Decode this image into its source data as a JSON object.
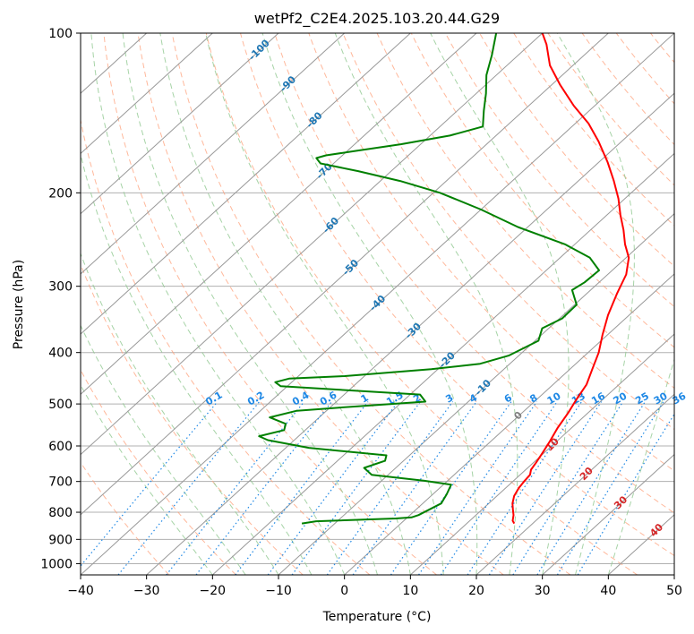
{
  "chart_data": {
    "type": "skew-t",
    "title": "wetPf2_C2E4.2025.103.20.44.G29",
    "xlabel": "Temperature (°C)",
    "ylabel": "Pressure (hPa)",
    "xlim": [
      -40,
      50
    ],
    "ylim": [
      1050,
      100
    ],
    "y_scale": "log",
    "x_ticks": [
      -40,
      -30,
      -20,
      -10,
      0,
      10,
      20,
      30,
      40,
      50
    ],
    "x_tick_labels": [
      "−40",
      "−30",
      "−20",
      "−10",
      "0",
      "10",
      "20",
      "30",
      "40",
      "50"
    ],
    "y_ticks": [
      100,
      200,
      300,
      400,
      500,
      600,
      700,
      800,
      900,
      1000
    ],
    "y_tick_labels": [
      "100",
      "200",
      "300",
      "400",
      "500",
      "600",
      "700",
      "800",
      "900",
      "1000"
    ],
    "grid": true,
    "colors": {
      "temperature": "#ff0000",
      "dewpoint": "#008000",
      "isotherm": "#999999",
      "dry_adiabat": "#ffa07a",
      "moist_adiabat": "#90c890",
      "mixing_ratio": "#1e88e5",
      "isotherm_label": "#1f77b4",
      "warm_label": "#d62728",
      "zero_label": "#808080"
    },
    "series": [
      {
        "kind": "temperature",
        "points": [
          [
            17.2,
            840
          ],
          [
            16.5,
            830
          ],
          [
            15.7,
            810
          ],
          [
            14.9,
            795
          ],
          [
            13.6,
            770
          ],
          [
            12.6,
            745
          ],
          [
            12.0,
            720
          ],
          [
            11.7,
            700
          ],
          [
            11.5,
            680
          ],
          [
            10.8,
            665
          ],
          [
            10.4,
            645
          ],
          [
            9.8,
            620
          ],
          [
            9.0,
            590
          ],
          [
            7.9,
            555
          ],
          [
            7.0,
            520
          ],
          [
            6.0,
            490
          ],
          [
            5.1,
            460
          ],
          [
            3.4,
            430
          ],
          [
            1.6,
            400
          ],
          [
            -0.8,
            370
          ],
          [
            -3.2,
            340
          ],
          [
            -5.4,
            310
          ],
          [
            -7.2,
            285
          ],
          [
            -9.6,
            265
          ],
          [
            -12.4,
            250
          ],
          [
            -15.0,
            235
          ],
          [
            -18.0,
            220
          ],
          [
            -21.0,
            205
          ],
          [
            -24.6,
            190
          ],
          [
            -28.7,
            175
          ],
          [
            -33.5,
            160
          ],
          [
            -38.0,
            148
          ],
          [
            -43.2,
            137
          ],
          [
            -48.8,
            125
          ],
          [
            -53.5,
            115
          ],
          [
            -57.5,
            105
          ],
          [
            -60.0,
            100
          ]
        ]
      },
      {
        "kind": "dewpoint",
        "points": [
          [
            -15.0,
            840
          ],
          [
            -13.2,
            832
          ],
          [
            -1.6,
            822
          ],
          [
            0.6,
            818
          ],
          [
            1.3,
            810
          ],
          [
            2.8,
            770
          ],
          [
            2.1,
            740
          ],
          [
            1.2,
            710
          ],
          [
            -3.5,
            698
          ],
          [
            -12.5,
            680
          ],
          [
            -14.8,
            660
          ],
          [
            -12.8,
            640
          ],
          [
            -13.5,
            625
          ],
          [
            -26.5,
            605
          ],
          [
            -34.0,
            585
          ],
          [
            -36.0,
            575
          ],
          [
            -33.2,
            560
          ],
          [
            -34.0,
            545
          ],
          [
            -37.5,
            530
          ],
          [
            -34.5,
            515
          ],
          [
            -26.0,
            505
          ],
          [
            -16.5,
            495
          ],
          [
            -18.5,
            480
          ],
          [
            -41.0,
            463
          ],
          [
            -42.5,
            455
          ],
          [
            -41.0,
            448
          ],
          [
            -33.0,
            443
          ],
          [
            -21.0,
            430
          ],
          [
            -14.5,
            420
          ],
          [
            -11.5,
            405
          ],
          [
            -9.5,
            380
          ],
          [
            -11.0,
            360
          ],
          [
            -9.6,
            345
          ],
          [
            -9.7,
            325
          ],
          [
            -12.8,
            305
          ],
          [
            -12.2,
            295
          ],
          [
            -12.0,
            280
          ],
          [
            -15.5,
            265
          ],
          [
            -21.5,
            250
          ],
          [
            -31.5,
            232
          ],
          [
            -40.0,
            215
          ],
          [
            -49.0,
            200
          ],
          [
            -57.0,
            190
          ],
          [
            -65.0,
            182
          ],
          [
            -72.0,
            176
          ],
          [
            -73.5,
            172
          ],
          [
            -72.5,
            170
          ],
          [
            -69.0,
            167
          ],
          [
            -63.0,
            162
          ],
          [
            -57.0,
            156
          ],
          [
            -53.5,
            150
          ],
          [
            -56.0,
            140
          ],
          [
            -58.5,
            130
          ],
          [
            -61.5,
            120
          ],
          [
            -64.0,
            110
          ],
          [
            -67.0,
            100
          ]
        ]
      }
    ],
    "mixing_ratio_labels": [
      "0.1",
      "0.2",
      "0.4",
      "0.6",
      "1",
      "1.5",
      "2",
      "3",
      "4",
      "6",
      "8",
      "10",
      "13",
      "16",
      "20",
      "25",
      "30",
      "36"
    ],
    "isotherm_labels": [
      "-100",
      "-90",
      "-80",
      "-70",
      "-60",
      "-50",
      "-40",
      "-30",
      "-20",
      "-10",
      "0",
      "10",
      "20",
      "30",
      "40"
    ]
  }
}
